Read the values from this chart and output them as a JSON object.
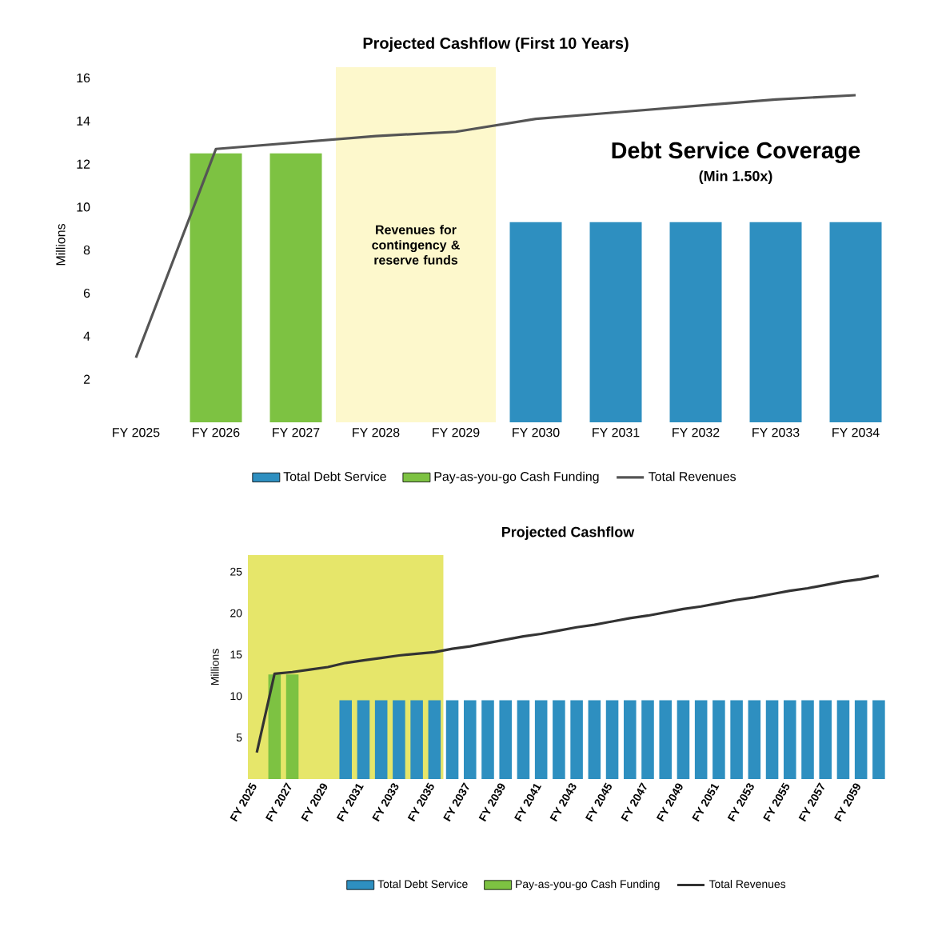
{
  "chart_data": [
    {
      "type": "bar",
      "title": "Projected Cashflow (First 10 Years)",
      "ylabel": "Millions",
      "categories": [
        "FY 2025",
        "FY 2026",
        "FY 2027",
        "FY 2028",
        "FY 2029",
        "FY 2030",
        "FY 2031",
        "FY 2032",
        "FY 2033",
        "FY 2034"
      ],
      "series": [
        {
          "name": "Total Debt Service",
          "color": "#2e8fc0",
          "values": [
            null,
            null,
            null,
            null,
            null,
            9.3,
            9.3,
            9.3,
            9.3,
            9.3
          ]
        },
        {
          "name": "Pay-as-you-go Cash Funding",
          "color": "#7dc242",
          "values": [
            null,
            12.5,
            12.5,
            null,
            null,
            null,
            null,
            null,
            null,
            null
          ]
        },
        {
          "name": "Total Revenues",
          "type": "line",
          "color": "#555555",
          "values": [
            3.0,
            12.7,
            13.0,
            13.3,
            13.5,
            14.1,
            14.4,
            14.7,
            15.0,
            15.2
          ]
        }
      ],
      "ylim": [
        0,
        16.5
      ],
      "yticks": [
        2,
        4,
        6,
        8,
        10,
        12,
        14,
        16
      ],
      "bands": [
        {
          "axis": "x",
          "from": "FY 2028",
          "to": "FY 2029",
          "label": "Revenues for contingency & reserve funds",
          "color": "#fdf8cc"
        }
      ],
      "annotations": [
        "Debt Service Coverage",
        "(Min 1.50x)"
      ],
      "legend": "bottom",
      "marker": "none",
      "line_style": "solid"
    },
    {
      "type": "bar",
      "title": "Projected Cashflow",
      "ylabel": "Millions",
      "categories": [
        "FY 2025",
        null,
        "FY 2027",
        null,
        "FY 2029",
        null,
        "FY 2031",
        null,
        "FY 2033",
        null,
        "FY 2035",
        null,
        "FY 2037",
        null,
        "FY 2039",
        null,
        "FY 2041",
        null,
        "FY 2043",
        null,
        "FY 2045",
        null,
        "FY 2047",
        null,
        "FY 2049",
        null,
        "FY 2051",
        null,
        "FY 2053",
        null,
        "FY 2055",
        null,
        "FY 2057",
        null,
        "FY 2059",
        null
      ],
      "series": [
        {
          "name": "Total Debt Service",
          "color": "#2e8fc0",
          "values": [
            null,
            null,
            null,
            null,
            null,
            9.5,
            9.5,
            9.5,
            9.5,
            9.5,
            9.5,
            9.5,
            9.5,
            9.5,
            9.5,
            9.5,
            9.5,
            9.5,
            9.5,
            9.5,
            9.5,
            9.5,
            9.5,
            9.5,
            9.5,
            9.5,
            9.5,
            9.5,
            9.5,
            9.5,
            9.5,
            9.5,
            9.5,
            9.5,
            9.5,
            9.5
          ]
        },
        {
          "name": "Pay-as-you-go Cash Funding",
          "color": "#7dc242",
          "values": [
            null,
            12.6,
            12.6,
            null,
            null,
            null,
            null,
            null,
            null,
            null,
            null,
            null,
            null,
            null,
            null,
            null,
            null,
            null,
            null,
            null,
            null,
            null,
            null,
            null,
            null,
            null,
            null,
            null,
            null,
            null,
            null,
            null,
            null,
            null,
            null,
            null
          ]
        },
        {
          "name": "Total Revenues",
          "type": "line",
          "color": "#333333",
          "values": [
            3.2,
            12.7,
            12.9,
            13.2,
            13.5,
            14.0,
            14.3,
            14.6,
            14.9,
            15.1,
            15.3,
            15.7,
            16.0,
            16.4,
            16.8,
            17.2,
            17.5,
            17.9,
            18.3,
            18.6,
            19.0,
            19.4,
            19.7,
            20.1,
            20.5,
            20.8,
            21.2,
            21.6,
            21.9,
            22.3,
            22.7,
            23.0,
            23.4,
            23.8,
            24.1,
            24.5
          ]
        }
      ],
      "ylim": [
        0,
        27
      ],
      "yticks": [
        5,
        10,
        15,
        20,
        25
      ],
      "bands": [
        {
          "axis": "x",
          "from": "FY 2025",
          "to": "FY 2035",
          "color": "#e6e66a"
        }
      ],
      "legend": "bottom",
      "marker": "none",
      "line_style": "solid"
    }
  ]
}
